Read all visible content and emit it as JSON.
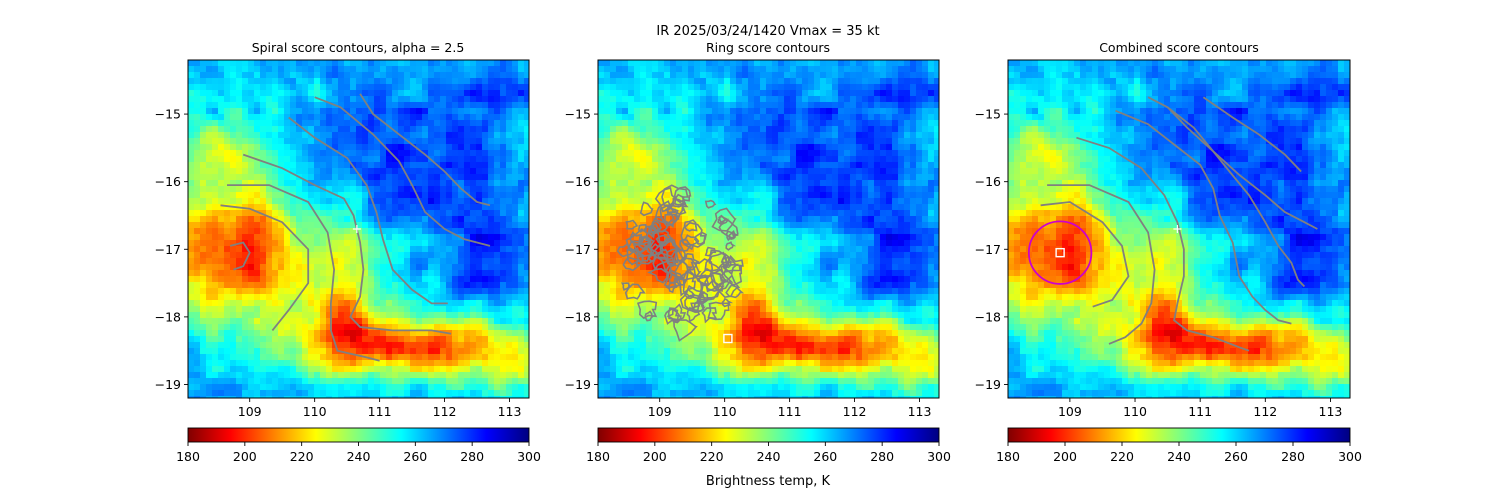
{
  "suptitle_line1": "IR  2025/03/24/1420    Vmax = 35 kt",
  "colorbar": {
    "label": "Brightness temp, K",
    "range": [
      180,
      300
    ],
    "ticks": [
      "180",
      "200",
      "220",
      "240",
      "260",
      "280",
      "300"
    ],
    "colormap": "jet_r",
    "colors": [
      "#800000",
      "#ff0000",
      "#ff8000",
      "#ffff00",
      "#80ff80",
      "#00ffff",
      "#0080ff",
      "#0000ff",
      "#000080"
    ]
  },
  "chart_data": [
    {
      "type": "heatmap",
      "title": "Spiral score contours, alpha =  2.5",
      "xlim": [
        108.05,
        113.3
      ],
      "ylim": [
        -19.2,
        -14.2
      ],
      "xticks": [
        "109",
        "110",
        "111",
        "112",
        "113"
      ],
      "yticks": [
        "−15",
        "−16",
        "−17",
        "−18",
        "−19"
      ],
      "markers": [
        {
          "symbol": "plus",
          "x": 110.65,
          "y": -16.7,
          "color": "#ffffff"
        }
      ],
      "contour_color": "#808080",
      "contour_lines": [
        [
          [
            108.7,
            -16.95
          ],
          [
            108.9,
            -16.9
          ],
          [
            109.0,
            -17.05
          ],
          [
            108.9,
            -17.25
          ],
          [
            108.75,
            -17.3
          ]
        ],
        [
          [
            108.55,
            -16.35
          ],
          [
            109.0,
            -16.4
          ],
          [
            109.5,
            -16.6
          ],
          [
            109.9,
            -17.0
          ],
          [
            109.9,
            -17.5
          ],
          [
            109.6,
            -17.9
          ],
          [
            109.35,
            -18.2
          ]
        ],
        [
          [
            108.65,
            -16.05
          ],
          [
            109.3,
            -16.05
          ],
          [
            109.9,
            -16.3
          ],
          [
            110.2,
            -16.75
          ],
          [
            110.3,
            -17.3
          ],
          [
            110.25,
            -17.8
          ],
          [
            110.25,
            -18.2
          ],
          [
            110.35,
            -18.5
          ],
          [
            110.8,
            -18.6
          ],
          [
            111.0,
            -18.65
          ]
        ],
        [
          [
            108.9,
            -15.6
          ],
          [
            109.5,
            -15.8
          ],
          [
            110.0,
            -16.05
          ],
          [
            110.45,
            -16.25
          ],
          [
            110.6,
            -16.5
          ],
          [
            110.7,
            -16.9
          ],
          [
            110.75,
            -17.3
          ],
          [
            110.7,
            -17.7
          ],
          [
            110.55,
            -18.0
          ],
          [
            110.7,
            -18.15
          ],
          [
            111.2,
            -18.2
          ],
          [
            111.8,
            -18.2
          ],
          [
            112.1,
            -18.25
          ]
        ],
        [
          [
            109.6,
            -15.05
          ],
          [
            110.0,
            -15.35
          ],
          [
            110.5,
            -15.65
          ],
          [
            110.8,
            -16.05
          ],
          [
            110.95,
            -16.45
          ],
          [
            111.05,
            -16.85
          ],
          [
            111.2,
            -17.3
          ],
          [
            111.5,
            -17.6
          ],
          [
            111.8,
            -17.8
          ],
          [
            112.05,
            -17.8
          ]
        ],
        [
          [
            110.0,
            -14.75
          ],
          [
            110.4,
            -14.9
          ],
          [
            110.9,
            -15.3
          ],
          [
            111.3,
            -15.7
          ],
          [
            111.5,
            -16.05
          ],
          [
            111.7,
            -16.45
          ],
          [
            112.0,
            -16.7
          ],
          [
            112.3,
            -16.85
          ],
          [
            112.7,
            -16.95
          ]
        ],
        [
          [
            110.7,
            -14.7
          ],
          [
            110.9,
            -15.0
          ],
          [
            111.3,
            -15.3
          ],
          [
            111.7,
            -15.6
          ],
          [
            112.0,
            -15.85
          ],
          [
            112.25,
            -16.1
          ],
          [
            112.5,
            -16.3
          ],
          [
            112.7,
            -16.35
          ]
        ]
      ]
    },
    {
      "type": "heatmap",
      "title": "Ring score contours",
      "xlim": [
        108.05,
        113.3
      ],
      "ylim": [
        -19.2,
        -14.2
      ],
      "xticks": [
        "109",
        "110",
        "111",
        "112",
        "113"
      ],
      "yticks": [
        "−15",
        "−16",
        "−17",
        "−18",
        "−19"
      ],
      "markers": [
        {
          "symbol": "square",
          "x": 110.05,
          "y": -18.32,
          "color": "#ffffff"
        }
      ],
      "contour_color": "#808080",
      "ring_region": {
        "center": [
          109.3,
          -17.2
        ],
        "half_width": 1.0,
        "half_height": 1.05
      }
    },
    {
      "type": "heatmap",
      "title": "Combined score contours",
      "xlim": [
        108.05,
        113.3
      ],
      "ylim": [
        -19.2,
        -14.2
      ],
      "xticks": [
        "109",
        "110",
        "111",
        "112",
        "113"
      ],
      "yticks": [
        "−15",
        "−16",
        "−17",
        "−18",
        "−19"
      ],
      "markers": [
        {
          "symbol": "plus",
          "x": 110.65,
          "y": -16.7,
          "color": "#ffffff"
        },
        {
          "symbol": "square",
          "x": 108.85,
          "y": -17.05,
          "color": "#ffffff"
        }
      ],
      "circle": {
        "center": [
          108.85,
          -17.05
        ],
        "radius_deg": 0.48,
        "color": "#cc00cc"
      },
      "contour_color": "#808080",
      "contour_lines": [
        [
          [
            108.55,
            -16.35
          ],
          [
            109.0,
            -16.3
          ],
          [
            109.5,
            -16.6
          ],
          [
            109.8,
            -16.95
          ],
          [
            109.9,
            -17.4
          ],
          [
            109.65,
            -17.75
          ],
          [
            109.35,
            -17.85
          ]
        ],
        [
          [
            108.65,
            -16.05
          ],
          [
            109.3,
            -16.05
          ],
          [
            109.9,
            -16.3
          ],
          [
            110.2,
            -16.75
          ],
          [
            110.3,
            -17.3
          ],
          [
            110.25,
            -17.8
          ],
          [
            110.1,
            -18.1
          ],
          [
            109.85,
            -18.3
          ],
          [
            109.6,
            -18.4
          ]
        ],
        [
          [
            109.1,
            -15.35
          ],
          [
            109.6,
            -15.5
          ],
          [
            110.1,
            -15.8
          ],
          [
            110.45,
            -16.2
          ],
          [
            110.65,
            -16.6
          ],
          [
            110.75,
            -17.0
          ],
          [
            110.75,
            -17.4
          ],
          [
            110.65,
            -17.8
          ],
          [
            110.6,
            -18.05
          ],
          [
            110.8,
            -18.2
          ],
          [
            111.2,
            -18.3
          ],
          [
            111.6,
            -18.45
          ],
          [
            111.75,
            -18.5
          ]
        ],
        [
          [
            109.7,
            -14.95
          ],
          [
            110.2,
            -15.15
          ],
          [
            110.6,
            -15.45
          ],
          [
            111.0,
            -15.75
          ],
          [
            111.2,
            -16.1
          ],
          [
            111.3,
            -16.5
          ],
          [
            111.5,
            -16.9
          ],
          [
            111.6,
            -17.4
          ],
          [
            111.8,
            -17.7
          ],
          [
            112.0,
            -17.9
          ],
          [
            112.2,
            -18.05
          ],
          [
            112.4,
            -18.1
          ]
        ],
        [
          [
            110.2,
            -14.75
          ],
          [
            110.5,
            -14.9
          ],
          [
            110.9,
            -15.2
          ],
          [
            111.2,
            -15.55
          ],
          [
            111.45,
            -15.85
          ],
          [
            111.75,
            -16.2
          ],
          [
            112.0,
            -16.6
          ],
          [
            112.2,
            -16.95
          ],
          [
            112.4,
            -17.2
          ],
          [
            112.5,
            -17.45
          ],
          [
            112.6,
            -17.55
          ]
        ],
        [
          [
            110.5,
            -14.9
          ],
          [
            110.8,
            -15.2
          ],
          [
            111.2,
            -15.55
          ],
          [
            111.6,
            -15.9
          ],
          [
            112.0,
            -16.2
          ],
          [
            112.3,
            -16.45
          ],
          [
            112.6,
            -16.6
          ],
          [
            112.8,
            -16.7
          ]
        ],
        [
          [
            111.05,
            -14.75
          ],
          [
            111.5,
            -15.05
          ],
          [
            111.9,
            -15.3
          ],
          [
            112.3,
            -15.6
          ],
          [
            112.55,
            -15.85
          ]
        ]
      ]
    }
  ]
}
